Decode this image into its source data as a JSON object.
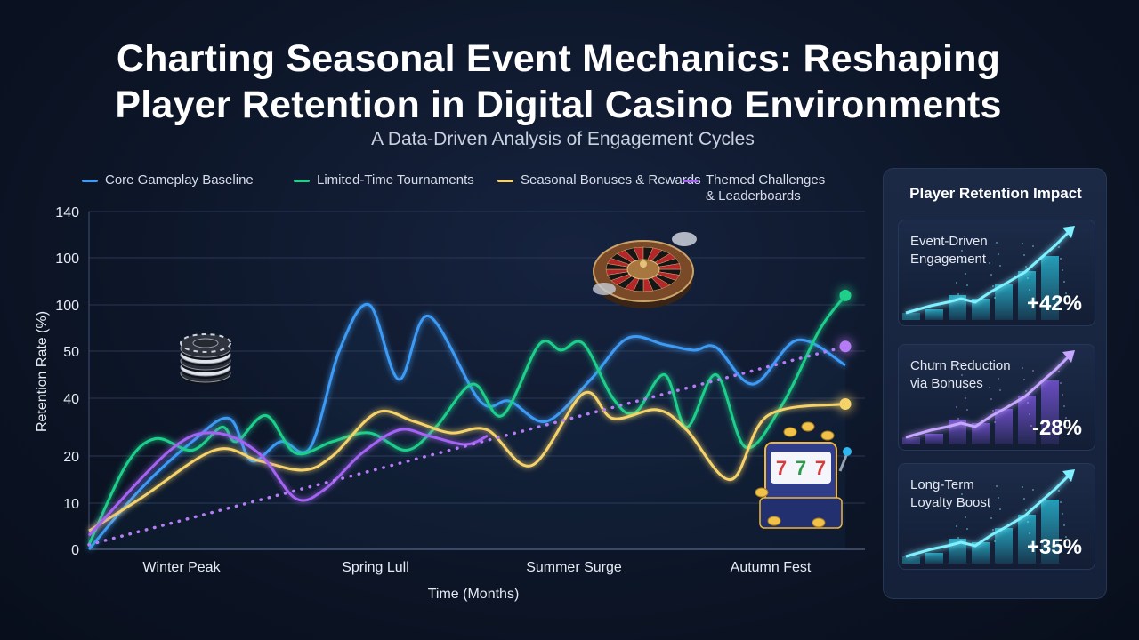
{
  "header": {
    "title_line1": "Charting Seasonal Event Mechanics: Reshaping",
    "title_line2": "Player Retention in Digital Casino Environments",
    "subtitle": "A Data-Driven Analysis of Engagement Cycles"
  },
  "chart_data": {
    "type": "line",
    "title": "",
    "xlabel": "Time (Months)",
    "ylabel": "Retention Rate (%)",
    "y_tick_labels": [
      "0",
      "10",
      "20",
      "40",
      "50",
      "100",
      "100",
      "140"
    ],
    "x_tick_labels": [
      "Winter Peak",
      "Spring Lull",
      "Summer Surge",
      "Autumn Fest"
    ],
    "grid": true,
    "legend_position": "top",
    "series": [
      {
        "name": "Core Gameplay Baseline",
        "color": "#3d9bf5",
        "points": [
          [
            0,
            0
          ],
          [
            0.7,
            13
          ],
          [
            1.4,
            25
          ],
          [
            1.9,
            33
          ],
          [
            2.2,
            19
          ],
          [
            2.6,
            25
          ],
          [
            3,
            23
          ],
          [
            3.4,
            52
          ],
          [
            3.8,
            100
          ],
          [
            4.2,
            44
          ],
          [
            4.6,
            88
          ],
          [
            5.3,
            39
          ],
          [
            5.7,
            39
          ],
          [
            6.2,
            32
          ],
          [
            6.8,
            44
          ],
          [
            7.3,
            64
          ],
          [
            7.8,
            57
          ],
          [
            8.2,
            51
          ],
          [
            8.5,
            54
          ],
          [
            9,
            43
          ],
          [
            9.6,
            62
          ],
          [
            10.25,
            47
          ]
        ]
      },
      {
        "name": "Limited-Time Tournaments",
        "color": "#1fcf8a",
        "points": [
          [
            0,
            1
          ],
          [
            0.5,
            18
          ],
          [
            0.9,
            26
          ],
          [
            1.4,
            22
          ],
          [
            1.8,
            30
          ],
          [
            2,
            25
          ],
          [
            2.4,
            34
          ],
          [
            2.8,
            21
          ],
          [
            3.3,
            25
          ],
          [
            3.8,
            28
          ],
          [
            4.3,
            22
          ],
          [
            4.7,
            30
          ],
          [
            5.2,
            43
          ],
          [
            5.6,
            34
          ],
          [
            6.1,
            57
          ],
          [
            6.4,
            51
          ],
          [
            6.7,
            58
          ],
          [
            7.1,
            40
          ],
          [
            7.4,
            35
          ],
          [
            7.8,
            45
          ],
          [
            8.1,
            30
          ],
          [
            8.5,
            45
          ],
          [
            8.9,
            23
          ],
          [
            9.4,
            38
          ],
          [
            9.9,
            73
          ],
          [
            10.25,
            104
          ]
        ]
      },
      {
        "name": "Seasonal Bonuses & Rewards",
        "color": "#f5d36a",
        "points": [
          [
            0,
            4
          ],
          [
            0.7,
            11
          ],
          [
            1.7,
            22
          ],
          [
            2.3,
            19
          ],
          [
            2.9,
            17
          ],
          [
            3.3,
            20
          ],
          [
            3.9,
            35
          ],
          [
            4.4,
            32
          ],
          [
            4.9,
            28
          ],
          [
            5.4,
            29
          ],
          [
            6,
            18
          ],
          [
            6.7,
            41
          ],
          [
            7.1,
            33
          ],
          [
            7.7,
            36
          ],
          [
            8.1,
            29
          ],
          [
            8.7,
            15
          ],
          [
            9.2,
            34
          ],
          [
            10.25,
            38
          ]
        ]
      },
      {
        "name": "Themed Challenges & Leaderboards",
        "color": "#a463f2",
        "points": [
          [
            0,
            3
          ],
          [
            1.1,
            22
          ],
          [
            1.7,
            28
          ],
          [
            2.3,
            21
          ],
          [
            2.8,
            11
          ],
          [
            3.2,
            13
          ],
          [
            3.7,
            21
          ],
          [
            4.2,
            29
          ],
          [
            4.6,
            27
          ],
          [
            5.1,
            24
          ],
          [
            5.4,
            27
          ]
        ]
      },
      {
        "name": "Trend",
        "color": "#b57cf5",
        "dotted": true,
        "points": [
          [
            0,
            1
          ],
          [
            10.25,
            55
          ]
        ]
      }
    ]
  },
  "side_panel": {
    "title": "Player Retention Impact",
    "cards": [
      {
        "label": "Event-Driven Engagement",
        "value": "+42%",
        "color": "#2ad0ea",
        "color_light": "#7ff0ff"
      },
      {
        "label": "Churn Reduction via Bonuses",
        "value": "-28%",
        "color": "#8a5cf5",
        "color_light": "#c6a6ff"
      },
      {
        "label": "Long-Term Loyalty Boost",
        "value": "+35%",
        "color": "#2ad0ea",
        "color_light": "#7ff0ff"
      }
    ]
  },
  "decor": {
    "chips_icon": "poker-chips-icon",
    "roulette_icon": "roulette-wheel-icon",
    "slot_icon": "slot-machine-icon"
  }
}
